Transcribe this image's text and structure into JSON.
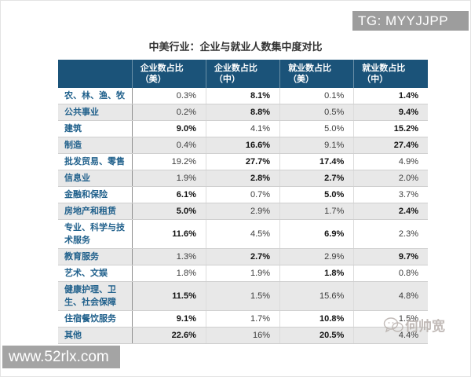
{
  "banner": {
    "text": "TG: MYYJJPP"
  },
  "watermark_site": {
    "text": "www.52rlx.com"
  },
  "watermark_author": {
    "text": "何帅宽"
  },
  "table": {
    "title": "中美行业：企业与就业人数集中度对比",
    "columns": [
      "",
      "企业数占比（美）",
      "企业数占比（中）",
      "就业数占比（美）",
      "就业数占比（中）"
    ],
    "rows": [
      {
        "label": "农、林、渔、牧",
        "values": [
          "0.3%",
          "8.1%",
          "0.1%",
          "1.4%"
        ],
        "bold": [
          false,
          true,
          false,
          true
        ]
      },
      {
        "label": "公共事业",
        "values": [
          "0.2%",
          "8.8%",
          "0.5%",
          "9.4%"
        ],
        "bold": [
          false,
          true,
          false,
          true
        ]
      },
      {
        "label": "建筑",
        "values": [
          "9.0%",
          "4.1%",
          "5.0%",
          "15.2%"
        ],
        "bold": [
          true,
          false,
          false,
          true
        ]
      },
      {
        "label": "制造",
        "values": [
          "0.4%",
          "16.6%",
          "9.1%",
          "27.4%"
        ],
        "bold": [
          false,
          true,
          false,
          true
        ]
      },
      {
        "label": "批发贸易、零售",
        "values": [
          "19.2%",
          "27.7%",
          "17.4%",
          "4.9%"
        ],
        "bold": [
          false,
          true,
          true,
          false
        ]
      },
      {
        "label": "信息业",
        "values": [
          "1.9%",
          "2.8%",
          "2.7%",
          "2.0%"
        ],
        "bold": [
          false,
          true,
          true,
          false
        ]
      },
      {
        "label": "金融和保险",
        "values": [
          "6.1%",
          "0.7%",
          "5.0%",
          "3.7%"
        ],
        "bold": [
          true,
          false,
          true,
          false
        ]
      },
      {
        "label": "房地产和租赁",
        "values": [
          "5.0%",
          "2.9%",
          "1.7%",
          "2.4%"
        ],
        "bold": [
          true,
          false,
          false,
          true
        ]
      },
      {
        "label": "专业、科学与技术服务",
        "values": [
          "11.6%",
          "4.5%",
          "6.9%",
          "2.3%"
        ],
        "bold": [
          true,
          false,
          true,
          false
        ]
      },
      {
        "label": "教育服务",
        "values": [
          "1.3%",
          "2.7%",
          "2.9%",
          "9.7%"
        ],
        "bold": [
          false,
          true,
          false,
          true
        ]
      },
      {
        "label": "艺术、文娱",
        "values": [
          "1.8%",
          "1.9%",
          "1.8%",
          "0.8%"
        ],
        "bold": [
          false,
          false,
          true,
          false
        ]
      },
      {
        "label": "健康护理、卫生、社会保障",
        "values": [
          "11.5%",
          "1.5%",
          "15.6%",
          "4.8%"
        ],
        "bold": [
          true,
          false,
          false,
          false
        ]
      },
      {
        "label": "住宿餐饮服务",
        "values": [
          "9.1%",
          "1.7%",
          "10.8%",
          "1.5%"
        ],
        "bold": [
          true,
          false,
          true,
          false
        ]
      },
      {
        "label": "其他",
        "values": [
          "22.6%",
          "16%",
          "20.5%",
          "4.4%"
        ],
        "bold": [
          true,
          false,
          true,
          false
        ]
      }
    ]
  },
  "chart_data": {
    "type": "table",
    "title": "中美行业：企业与就业人数集中度对比",
    "categories": [
      "农、林、渔、牧",
      "公共事业",
      "建筑",
      "制造",
      "批发贸易、零售",
      "信息业",
      "金融和保险",
      "房地产和租赁",
      "专业、科学与技术服务",
      "教育服务",
      "艺术、文娱",
      "健康护理、卫生、社会保障",
      "住宿餐饮服务",
      "其他"
    ],
    "series": [
      {
        "name": "企业数占比（美）",
        "values": [
          "0.3%",
          "0.2%",
          "9.0%",
          "0.4%",
          "19.2%",
          "1.9%",
          "6.1%",
          "5.0%",
          "11.6%",
          "1.3%",
          "1.8%",
          "11.5%",
          "9.1%",
          "22.6%"
        ]
      },
      {
        "name": "企业数占比（中）",
        "values": [
          "8.1%",
          "8.8%",
          "4.1%",
          "16.6%",
          "27.7%",
          "2.8%",
          "0.7%",
          "2.9%",
          "4.5%",
          "2.7%",
          "1.9%",
          "1.5%",
          "1.7%",
          "16%"
        ]
      },
      {
        "name": "就业数占比（美）",
        "values": [
          "0.1%",
          "0.5%",
          "5.0%",
          "9.1%",
          "17.4%",
          "2.7%",
          "5.0%",
          "1.7%",
          "6.9%",
          "2.9%",
          "1.8%",
          "15.6%",
          "10.8%",
          "20.5%"
        ]
      },
      {
        "name": "就业数占比（中）",
        "values": [
          "1.4%",
          "9.4%",
          "15.2%",
          "27.4%",
          "4.9%",
          "2.0%",
          "3.7%",
          "2.4%",
          "2.3%",
          "9.7%",
          "0.8%",
          "4.8%",
          "1.5%",
          "4.4%"
        ]
      }
    ],
    "colors": {
      "header_bg": "#1b5379",
      "row_alt_bg": "#e8e8e8",
      "label_text": "#21618c",
      "banner_bg": "#9d9d9d",
      "watermark_bg": "#a4a4a4"
    }
  }
}
